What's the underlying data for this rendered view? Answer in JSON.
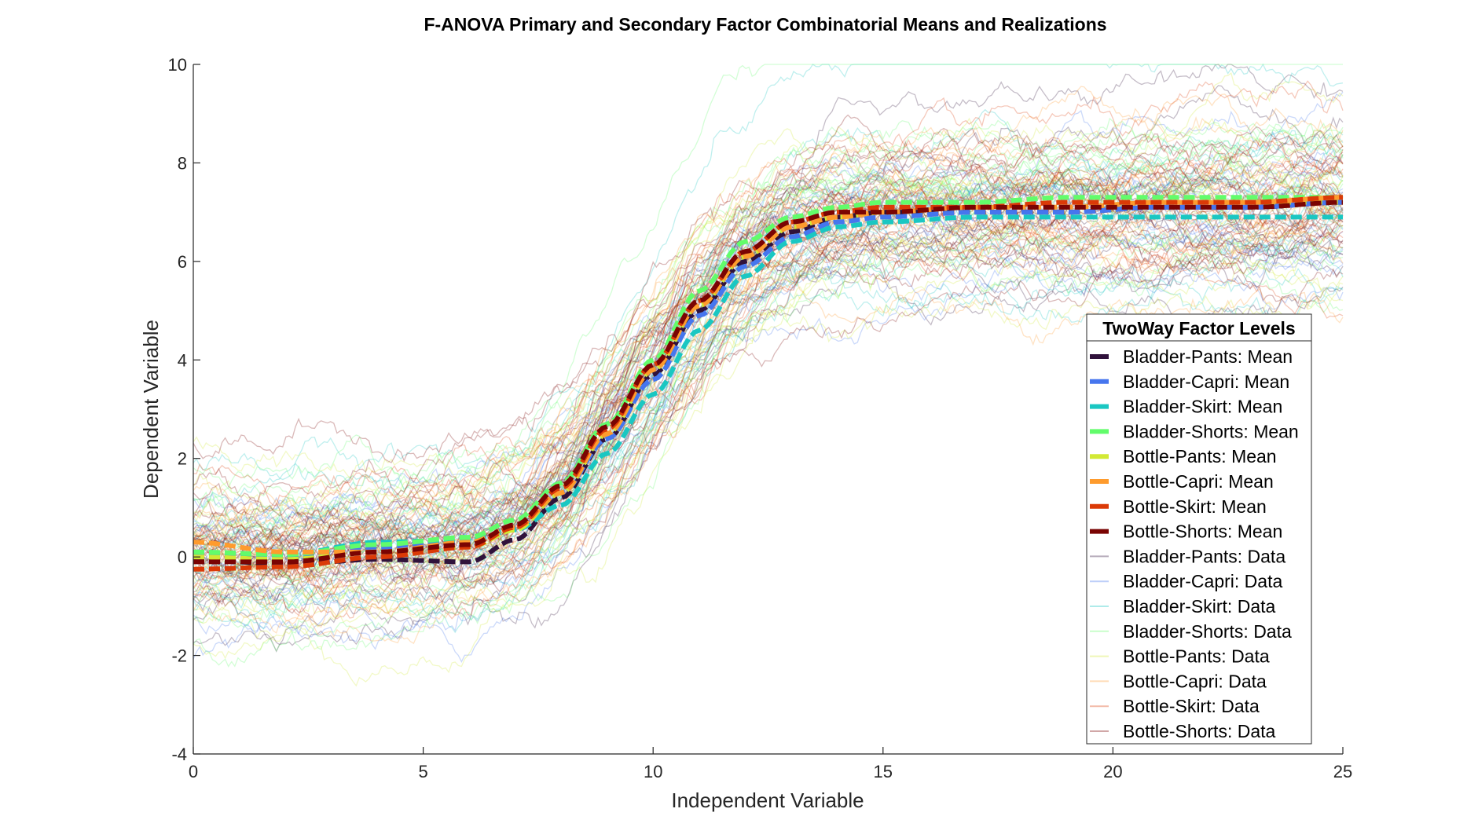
{
  "chart_data": {
    "type": "line",
    "title": "F-ANOVA Primary and Secondary Factor Combinatorial Means and Realizations",
    "xlabel": "Independent Variable",
    "ylabel": "Dependent Variable",
    "xlim": [
      0,
      25
    ],
    "ylim": [
      -4,
      10
    ],
    "xticks": [
      0,
      5,
      10,
      15,
      20,
      25
    ],
    "yticks": [
      -4,
      -2,
      0,
      2,
      4,
      6,
      8,
      10
    ],
    "grid": false,
    "legend": {
      "title": "TwoWay Factor Levels",
      "position": "right"
    },
    "mean_x": [
      0,
      2,
      4,
      6,
      7,
      8,
      9,
      10,
      11,
      12,
      13,
      14,
      15,
      17,
      19,
      21,
      23,
      25
    ],
    "series": [
      {
        "name": "Bladder-Pants: Mean",
        "color": "#30123b",
        "style": "mean",
        "values": [
          -0.05,
          -0.15,
          -0.05,
          -0.1,
          0.35,
          1.2,
          2.4,
          3.7,
          5.0,
          6.0,
          6.6,
          6.9,
          7.0,
          7.0,
          7.0,
          7.1,
          7.1,
          7.2
        ]
      },
      {
        "name": "Bladder-Capri: Mean",
        "color": "#4676ee",
        "style": "mean",
        "values": [
          0.05,
          0.0,
          0.2,
          0.3,
          0.6,
          1.3,
          2.4,
          3.6,
          4.9,
          5.9,
          6.5,
          6.8,
          6.9,
          7.0,
          7.0,
          7.1,
          7.1,
          7.2
        ]
      },
      {
        "name": "Bladder-Skirt: Mean",
        "color": "#1ac7c2",
        "style": "mean",
        "values": [
          0.1,
          0.05,
          0.3,
          0.35,
          0.55,
          1.05,
          2.1,
          3.3,
          4.6,
          5.7,
          6.4,
          6.7,
          6.8,
          6.9,
          6.9,
          6.9,
          6.9,
          6.9
        ]
      },
      {
        "name": "Bladder-Shorts: Mean",
        "color": "#62fc6b",
        "style": "mean",
        "values": [
          0.1,
          0.05,
          0.25,
          0.4,
          0.75,
          1.5,
          2.7,
          4.0,
          5.4,
          6.4,
          6.9,
          7.1,
          7.2,
          7.2,
          7.3,
          7.3,
          7.3,
          7.3
        ]
      },
      {
        "name": "Bottle-Pants: Mean",
        "color": "#d2e935",
        "style": "mean",
        "values": [
          0.0,
          -0.05,
          0.1,
          0.2,
          0.55,
          1.3,
          2.5,
          3.8,
          5.1,
          6.1,
          6.7,
          6.9,
          7.0,
          7.1,
          7.1,
          7.2,
          7.2,
          7.2
        ]
      },
      {
        "name": "Bottle-Capri: Mean",
        "color": "#fe9b2d",
        "style": "mean",
        "values": [
          0.3,
          0.1,
          0.1,
          0.3,
          0.6,
          1.3,
          2.5,
          3.8,
          5.1,
          6.1,
          6.7,
          6.9,
          7.0,
          7.1,
          7.1,
          7.2,
          7.2,
          7.3
        ]
      },
      {
        "name": "Bottle-Skirt: Mean",
        "color": "#db3a07",
        "style": "mean",
        "values": [
          -0.25,
          -0.2,
          0.0,
          0.2,
          0.6,
          1.4,
          2.6,
          3.9,
          5.2,
          6.2,
          6.8,
          7.0,
          7.1,
          7.1,
          7.2,
          7.2,
          7.2,
          7.3
        ]
      },
      {
        "name": "Bottle-Shorts: Mean",
        "color": "#7a0403",
        "style": "mean",
        "values": [
          -0.1,
          -0.1,
          0.1,
          0.25,
          0.65,
          1.45,
          2.65,
          3.9,
          5.2,
          6.2,
          6.8,
          7.0,
          7.0,
          7.1,
          7.1,
          7.1,
          7.1,
          7.2
        ]
      },
      {
        "name": "Bladder-Pants: Data",
        "color": "#30123b",
        "style": "data"
      },
      {
        "name": "Bladder-Capri: Data",
        "color": "#4676ee",
        "style": "data"
      },
      {
        "name": "Bladder-Skirt: Data",
        "color": "#1ac7c2",
        "style": "data"
      },
      {
        "name": "Bladder-Shorts: Data",
        "color": "#62fc6b",
        "style": "data"
      },
      {
        "name": "Bottle-Pants: Data",
        "color": "#d2e935",
        "style": "data"
      },
      {
        "name": "Bottle-Capri: Data",
        "color": "#fe9b2d",
        "style": "data"
      },
      {
        "name": "Bottle-Skirt: Data",
        "color": "#db3a07",
        "style": "data"
      },
      {
        "name": "Bottle-Shorts: Data",
        "color": "#7a0403",
        "style": "data"
      }
    ]
  }
}
